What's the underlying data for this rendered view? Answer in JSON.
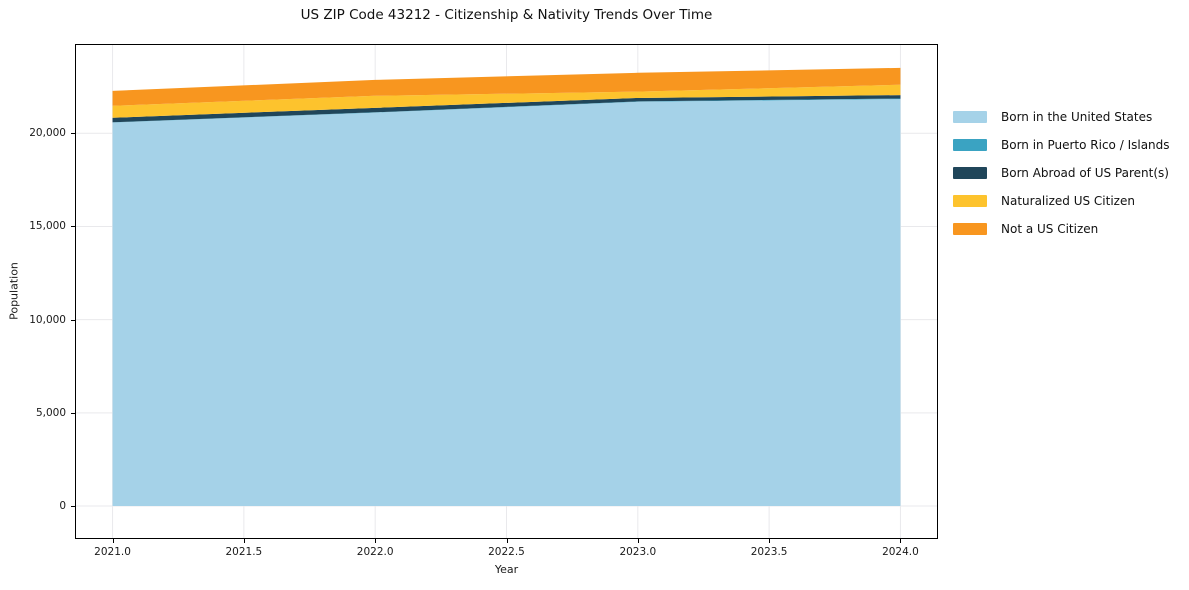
{
  "title": "US ZIP Code 43212 - Citizenship & Nativity Trends Over Time",
  "chart_data": {
    "type": "area",
    "stacked": true,
    "title": "US ZIP Code 43212 - Citizenship & Nativity Trends Over Time",
    "xlabel": "Year",
    "ylabel": "Population",
    "x": [
      2021,
      2022,
      2023,
      2024
    ],
    "series": [
      {
        "name": "Born in the United States",
        "color": "#a5d2e8",
        "values": [
          20575,
          21110,
          21690,
          21835
        ]
      },
      {
        "name": "Born in Puerto Rico / Islands",
        "color": "#3aa3c2",
        "values": [
          15,
          15,
          20,
          30
        ]
      },
      {
        "name": "Born Abroad of US Parent(s)",
        "color": "#20465a",
        "values": [
          240,
          240,
          185,
          185
        ]
      },
      {
        "name": "Naturalized US Citizen",
        "color": "#fdc32d",
        "values": [
          645,
          645,
          340,
          555
        ]
      },
      {
        "name": "Not a US Citizen",
        "color": "#f8961f",
        "values": [
          800,
          855,
          1010,
          905
        ]
      }
    ],
    "xlim": [
      2020.857,
      2024.143
    ],
    "ylim": [
      -1770,
      24790
    ],
    "xticks": {
      "values": [
        2021.0,
        2021.5,
        2022.0,
        2022.5,
        2023.0,
        2023.5,
        2024.0
      ],
      "labels": [
        "2021.0",
        "2021.5",
        "2022.0",
        "2022.5",
        "2023.0",
        "2023.5",
        "2024.0"
      ]
    },
    "yticks": {
      "values": [
        0,
        5000,
        10000,
        15000,
        20000
      ],
      "labels": [
        "0",
        "5,000",
        "10,000",
        "15,000",
        "20,000"
      ]
    },
    "grid": true,
    "grid_color": "#e9e9ec",
    "spine_color": "#000000",
    "legend_position": "right-top-outside"
  }
}
